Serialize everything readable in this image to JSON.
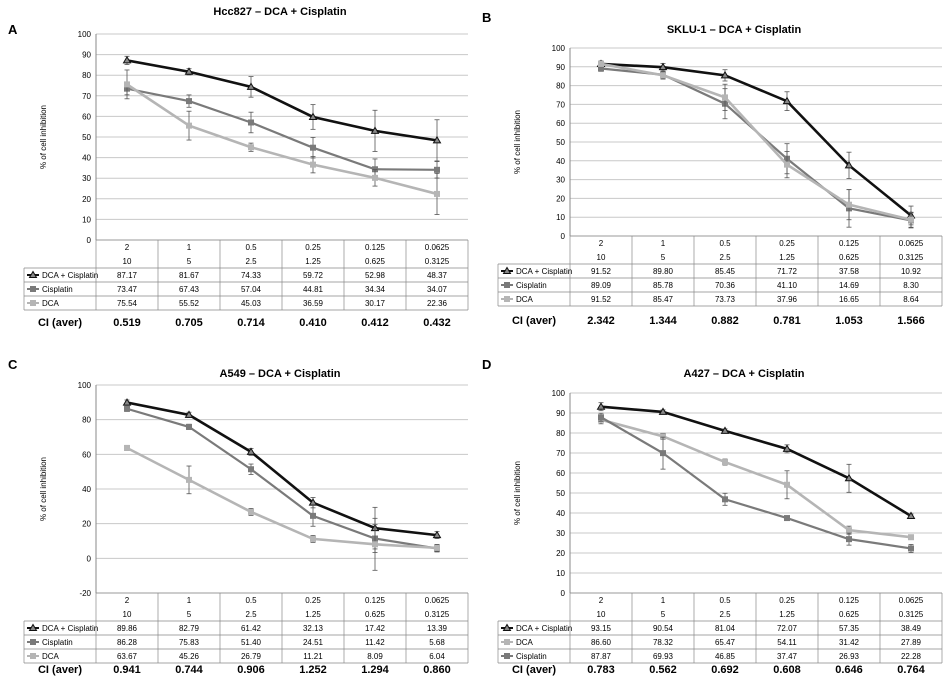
{
  "x_tick_labels": {
    "dca_row": [
      "2",
      "1",
      "0.5",
      "0.25",
      "0.125",
      "0.0625"
    ],
    "cis_row": [
      "10",
      "5",
      "2.5",
      "1.25",
      "0.625",
      "0.3125"
    ]
  },
  "ylabel": "% of cell inhibition",
  "ci_label": "CI (aver)",
  "colors": {
    "combo": "#111111",
    "cisplatin": "#7a7a7a",
    "dca": "#b5b5b5"
  },
  "chart_data": [
    {
      "id": "A",
      "letter": "A",
      "type": "line",
      "title": "Hcc827 – DCA + Cisplatin",
      "ylim": [
        0,
        100
      ],
      "yticks": [
        0,
        10,
        20,
        30,
        40,
        50,
        60,
        70,
        80,
        90,
        100
      ],
      "series": [
        {
          "name": "DCA + Cisplatin",
          "key": "combo",
          "values": [
            87.17,
            81.67,
            74.33,
            59.72,
            52.98,
            48.37
          ],
          "err": [
            2,
            1.5,
            5,
            6,
            10,
            10
          ],
          "labels": [
            "87.17",
            "81.67",
            "74.33",
            "59.72",
            "52.98",
            "48.37"
          ]
        },
        {
          "name": "Cisplatin",
          "key": "cisplatin",
          "values": [
            73.47,
            67.43,
            57.04,
            44.81,
            34.34,
            34.07
          ],
          "err": [
            3,
            3,
            5,
            5,
            5,
            4
          ],
          "labels": [
            "73.47",
            "67.43",
            "57.04",
            "44.81",
            "34.34",
            "34.07"
          ]
        },
        {
          "name": "DCA",
          "key": "dca",
          "values": [
            75.54,
            55.52,
            45.03,
            36.59,
            30.17,
            22.36
          ],
          "err": [
            7,
            7,
            2,
            4,
            4,
            10
          ],
          "labels": [
            "75.54",
            "55.52",
            "45.03",
            "36.59",
            "30.17",
            "22.36"
          ]
        }
      ],
      "ci": [
        "0.519",
        "0.705",
        "0.714",
        "0.410",
        "0.412",
        "0.432"
      ]
    },
    {
      "id": "B",
      "letter": "B",
      "type": "line",
      "title": "SKLU-1 – DCA + Cisplatin",
      "ylim": [
        0,
        100
      ],
      "yticks": [
        0,
        10,
        20,
        30,
        40,
        50,
        60,
        70,
        80,
        90,
        100
      ],
      "series": [
        {
          "name": "DCA + Cisplatin",
          "key": "combo",
          "values": [
            91.52,
            89.8,
            85.45,
            71.72,
            37.58,
            10.92
          ],
          "err": [
            1.5,
            2,
            3,
            5,
            7,
            5
          ],
          "labels": [
            "91.52",
            "89.80",
            "85.45",
            "71.72",
            "37.58",
            "10.92"
          ]
        },
        {
          "name": "Cisplatin",
          "key": "cisplatin",
          "values": [
            89.09,
            85.78,
            70.36,
            41.1,
            14.69,
            8.3
          ],
          "err": [
            1.5,
            2,
            8,
            8,
            10,
            4
          ],
          "labels": [
            "89.09",
            "85.78",
            "70.36",
            "41.10",
            "14.69",
            "8.30"
          ]
        },
        {
          "name": "DCA",
          "key": "dca",
          "values": [
            91.52,
            85.47,
            73.73,
            37.96,
            16.65,
            8.64
          ],
          "err": [
            1.5,
            2,
            7,
            7,
            8,
            4
          ],
          "labels": [
            "91.52",
            "85.47",
            "73.73",
            "37.96",
            "16.65",
            "8.64"
          ]
        }
      ],
      "ci": [
        "2.342",
        "1.344",
        "0.882",
        "0.781",
        "1.053",
        "1.566"
      ]
    },
    {
      "id": "C",
      "letter": "C",
      "type": "line",
      "title": "A549 – DCA + Cisplatin",
      "ylim": [
        -20,
        100
      ],
      "yticks": [
        -20,
        0,
        20,
        40,
        60,
        80,
        100
      ],
      "series": [
        {
          "name": "DCA + Cisplatin",
          "key": "combo",
          "values": [
            89.86,
            82.79,
            61.42,
            32.13,
            17.42,
            13.39
          ],
          "err": [
            1.5,
            1.5,
            2,
            3,
            12,
            2
          ],
          "labels": [
            "89.86",
            "82.79",
            "61.42",
            "32.13",
            "17.42",
            "13.39"
          ]
        },
        {
          "name": "Cisplatin",
          "key": "cisplatin",
          "values": [
            86.28,
            75.83,
            51.4,
            24.51,
            11.42,
            5.68
          ],
          "err": [
            1.5,
            1.5,
            3,
            6,
            8,
            2
          ],
          "labels": [
            "86.28",
            "75.83",
            "51.40",
            "24.51",
            "11.42",
            "5.68"
          ]
        },
        {
          "name": "DCA",
          "key": "dca",
          "values": [
            63.67,
            45.26,
            26.79,
            11.21,
            8.09,
            6.04
          ],
          "err": [
            1.5,
            8,
            2,
            2,
            15,
            2
          ],
          "labels": [
            "63.67",
            "45.26",
            "26.79",
            "11.21",
            "8.09",
            "6.04"
          ]
        }
      ],
      "ci": [
        "0.941",
        "0.744",
        "0.906",
        "1.252",
        "1.294",
        "0.860"
      ]
    },
    {
      "id": "D",
      "letter": "D",
      "type": "line",
      "title": "A427 – DCA + Cisplatin",
      "ylim": [
        0,
        100
      ],
      "yticks": [
        0,
        10,
        20,
        30,
        40,
        50,
        60,
        70,
        80,
        90,
        100
      ],
      "series": [
        {
          "name": "DCA + Cisplatin",
          "key": "combo",
          "values": [
            93.15,
            90.54,
            81.04,
            72.07,
            57.35,
            38.49
          ],
          "err": [
            2,
            1,
            1,
            2,
            7,
            1
          ],
          "labels": [
            "93.15",
            "90.54",
            "81.04",
            "72.07",
            "57.35",
            "38.49"
          ]
        },
        {
          "name": "DCA",
          "key": "dca",
          "values": [
            86.6,
            78.32,
            65.47,
            54.11,
            31.42,
            27.89
          ],
          "err": [
            2,
            1.5,
            1.5,
            7,
            2,
            1
          ],
          "labels": [
            "86.60",
            "78.32",
            "65.47",
            "54.11",
            "31.42",
            "27.89"
          ]
        },
        {
          "name": "Cisplatin",
          "key": "cisplatin",
          "values": [
            87.87,
            69.93,
            46.85,
            37.47,
            26.93,
            22.28
          ],
          "err": [
            2,
            8,
            3,
            1,
            3,
            2
          ],
          "labels": [
            "87.87",
            "69.93",
            "46.85",
            "37.47",
            "26.93",
            "22.28"
          ]
        }
      ],
      "ci": [
        "0.783",
        "0.562",
        "0.692",
        "0.608",
        "0.646",
        "0.764"
      ]
    }
  ]
}
